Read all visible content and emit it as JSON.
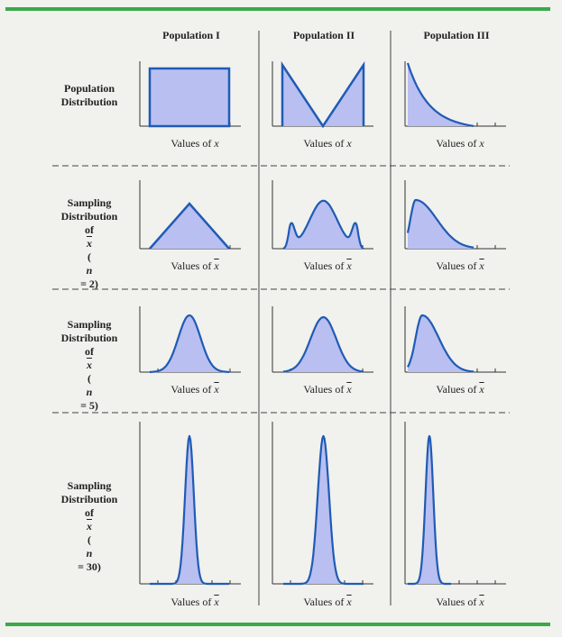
{
  "columns": [
    {
      "header": "Population I"
    },
    {
      "header": "Population II"
    },
    {
      "header": "Population III"
    }
  ],
  "rows": [
    {
      "label_lines": [
        "Population",
        "Distribution"
      ],
      "n_label": "",
      "axis_text": "Values of ",
      "axis_var": "x",
      "axis_bar": false
    },
    {
      "label_lines": [
        "Sampling",
        "Distribution",
        "of "
      ],
      "label_var": "x",
      "n_label": "(n = 2)",
      "n_pre": "(",
      "n_var": "n",
      "n_post": " = 2)",
      "axis_text": "Values of ",
      "axis_var": "x",
      "axis_bar": true
    },
    {
      "label_lines": [
        "Sampling",
        "Distribution",
        "of "
      ],
      "label_var": "x",
      "n_label": "(n = 5)",
      "n_pre": "(",
      "n_var": "n",
      "n_post": " = 5)",
      "axis_text": "Values of ",
      "axis_var": "x",
      "axis_bar": true
    },
    {
      "label_lines": [
        "Sampling",
        "Distribution",
        "of "
      ],
      "label_var": "x",
      "n_label": "(n = 30)",
      "n_pre": "(",
      "n_var": "n",
      "n_post": " = 30)",
      "axis_text": "Values of ",
      "axis_var": "x",
      "axis_bar": true
    }
  ],
  "colors": {
    "accent_green": "#3aa94a",
    "curve_stroke": "#1f5bb5",
    "curve_fill": "#b9bff0",
    "background": "#f1f1ee"
  }
}
